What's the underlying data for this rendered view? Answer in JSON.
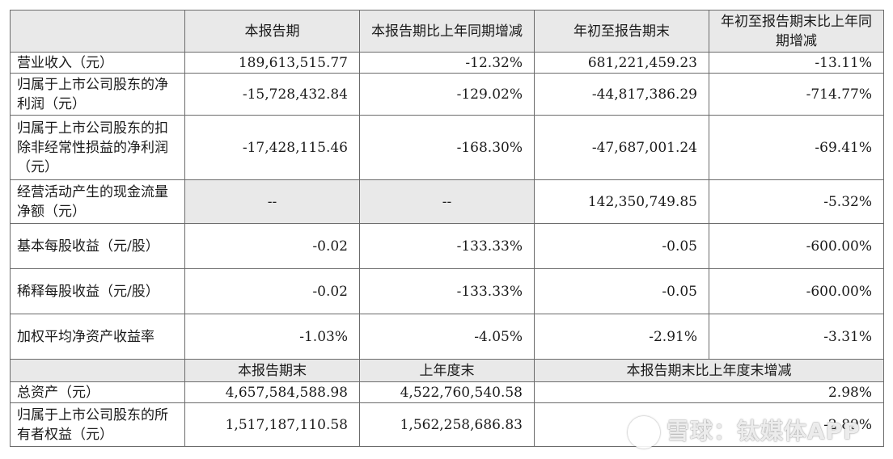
{
  "header": {
    "blank": "",
    "col1": "本报告期",
    "col2": "本报告期比上年同期增减",
    "col3": "年初至报告期末",
    "col4": "年初至报告期末比上年同期增减"
  },
  "rows": [
    {
      "label": "营业收入（元）",
      "v1": "189,613,515.77",
      "v2": "-12.32%",
      "v3": "681,221,459.23",
      "v4": "-13.11%"
    },
    {
      "label": "归属于上市公司股东的净利润（元）",
      "v1": "-15,728,432.84",
      "v2": "-129.02%",
      "v3": "-44,817,386.29",
      "v4": "-714.77%"
    },
    {
      "label": "归属于上市公司股东的扣除非经常性损益的净利润（元）",
      "v1": "-17,428,115.46",
      "v2": "-168.30%",
      "v3": "-47,687,001.24",
      "v4": "-69.41%"
    },
    {
      "label": "经营活动产生的现金流量净额（元）",
      "v1": "--",
      "v2": "--",
      "v3": "142,350,749.85",
      "v4": "-5.32%"
    },
    {
      "label": "基本每股收益（元/股）",
      "v1": "-0.02",
      "v2": "-133.33%",
      "v3": "-0.05",
      "v4": "-600.00%"
    },
    {
      "label": "稀释每股收益（元/股）",
      "v1": "-0.02",
      "v2": "-133.33%",
      "v3": "-0.05",
      "v4": "-600.00%"
    },
    {
      "label": "加权平均净资产收益率",
      "v1": "-1.03%",
      "v2": "-4.05%",
      "v3": "-2.91%",
      "v4": "-3.31%"
    }
  ],
  "header2": {
    "col1": "本报告期末",
    "col2": "上年度末",
    "col3": "本报告期末比上年度末增减"
  },
  "rows2": [
    {
      "label": "总资产（元）",
      "v1": "4,657,584,588.98",
      "v2": "4,522,760,540.58",
      "v3": "2.98%"
    },
    {
      "label": "归属于上市公司股东的所有者权益（元）",
      "v1": "1,517,187,110.58",
      "v2": "1,562,258,686.83",
      "v3": "-2.89%"
    }
  ],
  "watermark": {
    "text": "雪球：钛媒体APP"
  }
}
